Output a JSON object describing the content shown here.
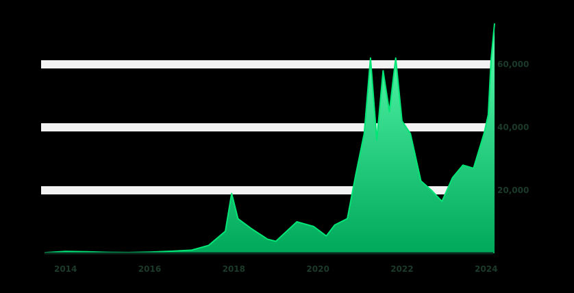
{
  "chart_data": {
    "type": "line",
    "title": "",
    "xlabel": "",
    "ylabel": "",
    "x_ticks": [
      "2014",
      "2016",
      "2018",
      "2020",
      "2022",
      "2024"
    ],
    "y_ticks": [
      "20,000",
      "40,000",
      "60,000"
    ],
    "ylim": [
      0,
      75000
    ],
    "xlim": [
      2013.5,
      2024.2
    ],
    "grid": true,
    "legend": "none",
    "colors": {
      "line": "#00e676",
      "area_top": "#5cffb0",
      "area_bottom": "#00a85a",
      "grid": "#f2f2f2",
      "axis": "#0b2a1e",
      "label": "#1c3a2a"
    },
    "series": [
      {
        "x": [
          2013.5,
          2014.0,
          2014.5,
          2015.0,
          2015.5,
          2016.0,
          2016.5,
          2017.0,
          2017.4,
          2017.8,
          2017.95,
          2018.1,
          2018.4,
          2018.8,
          2019.0,
          2019.5,
          2019.9,
          2020.2,
          2020.4,
          2020.7,
          2020.9,
          2021.1,
          2021.25,
          2021.4,
          2021.55,
          2021.7,
          2021.85,
          2022.0,
          2022.2,
          2022.45,
          2022.7,
          2022.95,
          2023.2,
          2023.45,
          2023.7,
          2023.95,
          2024.05,
          2024.12,
          2024.2
        ],
        "y": [
          200,
          600,
          500,
          300,
          250,
          400,
          650,
          1000,
          2500,
          7000,
          19000,
          11000,
          8000,
          4500,
          3800,
          10000,
          8500,
          5500,
          9000,
          11000,
          25000,
          38000,
          62000,
          36000,
          58000,
          45000,
          62000,
          42000,
          38000,
          23000,
          20000,
          16500,
          24000,
          28000,
          27000,
          38000,
          44000,
          62000,
          73000
        ]
      }
    ]
  }
}
